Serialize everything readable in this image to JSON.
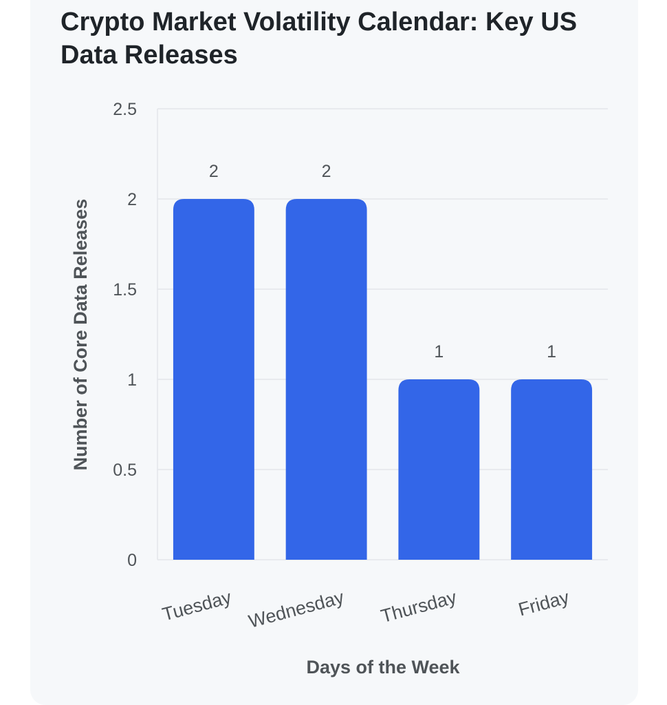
{
  "chart_data": {
    "type": "bar",
    "title": "Crypto Market Volatility Calendar: Key US Data Releases",
    "xlabel": "Days of the Week",
    "ylabel": "Number of Core Data Releases",
    "categories": [
      "Tuesday",
      "Wednesday",
      "Thursday",
      "Friday"
    ],
    "values": [
      2,
      2,
      1,
      1
    ],
    "data_labels": [
      "2",
      "2",
      "1",
      "1"
    ],
    "ylim": [
      0,
      2.5
    ],
    "yticks": [
      0,
      0.5,
      1,
      1.5,
      2,
      2.5
    ],
    "ytick_labels": [
      "0",
      "0.5",
      "1",
      "1.5",
      "2",
      "2.5"
    ],
    "grid": true,
    "bar_color": "#3366e8",
    "grid_color": "#e3e6ea"
  }
}
